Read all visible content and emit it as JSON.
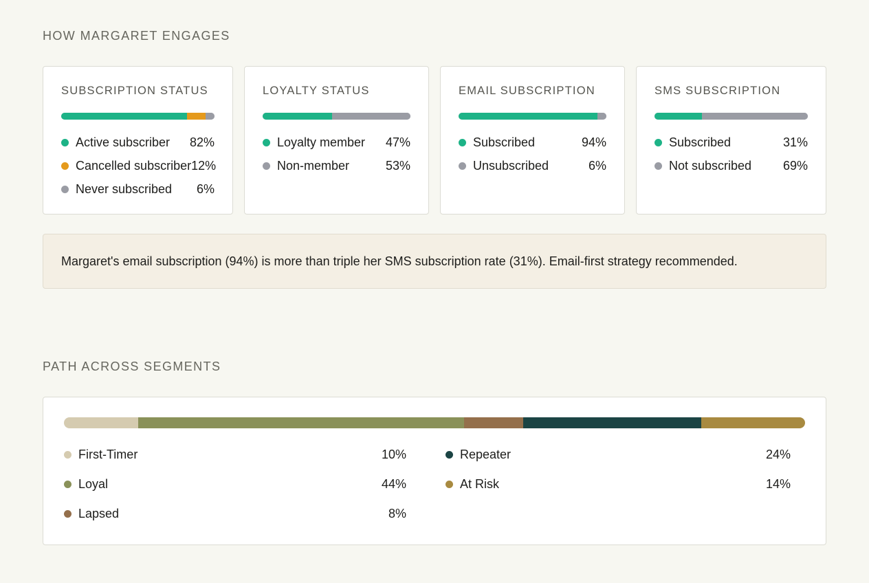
{
  "engagement": {
    "title": "HOW MARGARET ENGAGES",
    "cards": [
      {
        "title": "SUBSCRIPTION STATUS",
        "items": [
          {
            "label": "Active subscriber",
            "pct": "82%",
            "value": 82,
            "color": "#1db387"
          },
          {
            "label": "Cancelled subscriber",
            "pct": "12%",
            "value": 12,
            "color": "#e59a1c"
          },
          {
            "label": "Never subscribed",
            "pct": "6%",
            "value": 6,
            "color": "#9a9ca4"
          }
        ]
      },
      {
        "title": "LOYALTY STATUS",
        "items": [
          {
            "label": "Loyalty member",
            "pct": "47%",
            "value": 47,
            "color": "#1db387"
          },
          {
            "label": "Non-member",
            "pct": "53%",
            "value": 53,
            "color": "#9a9ca4"
          }
        ]
      },
      {
        "title": "EMAIL SUBSCRIPTION",
        "items": [
          {
            "label": "Subscribed",
            "pct": "94%",
            "value": 94,
            "color": "#1db387"
          },
          {
            "label": "Unsubscribed",
            "pct": "6%",
            "value": 6,
            "color": "#9a9ca4"
          }
        ]
      },
      {
        "title": "SMS SUBSCRIPTION",
        "items": [
          {
            "label": "Subscribed",
            "pct": "31%",
            "value": 31,
            "color": "#1db387"
          },
          {
            "label": "Not subscribed",
            "pct": "69%",
            "value": 69,
            "color": "#9a9ca4"
          }
        ]
      }
    ],
    "insight": "Margaret's email subscription (94%) is more than triple her SMS subscription rate (31%). Email-first strategy recommended."
  },
  "path": {
    "title": "PATH ACROSS SEGMENTS",
    "segments": [
      {
        "label": "First-Timer",
        "pct": "10%",
        "value": 10,
        "color": "#d5cbb0"
      },
      {
        "label": "Loyal",
        "pct": "44%",
        "value": 44,
        "color": "#8a9159"
      },
      {
        "label": "Lapsed",
        "pct": "8%",
        "value": 8,
        "color": "#946f4b"
      },
      {
        "label": "Repeater",
        "pct": "24%",
        "value": 24,
        "color": "#1b4444"
      },
      {
        "label": "At Risk",
        "pct": "14%",
        "value": 14,
        "color": "#a88a40"
      }
    ]
  }
}
